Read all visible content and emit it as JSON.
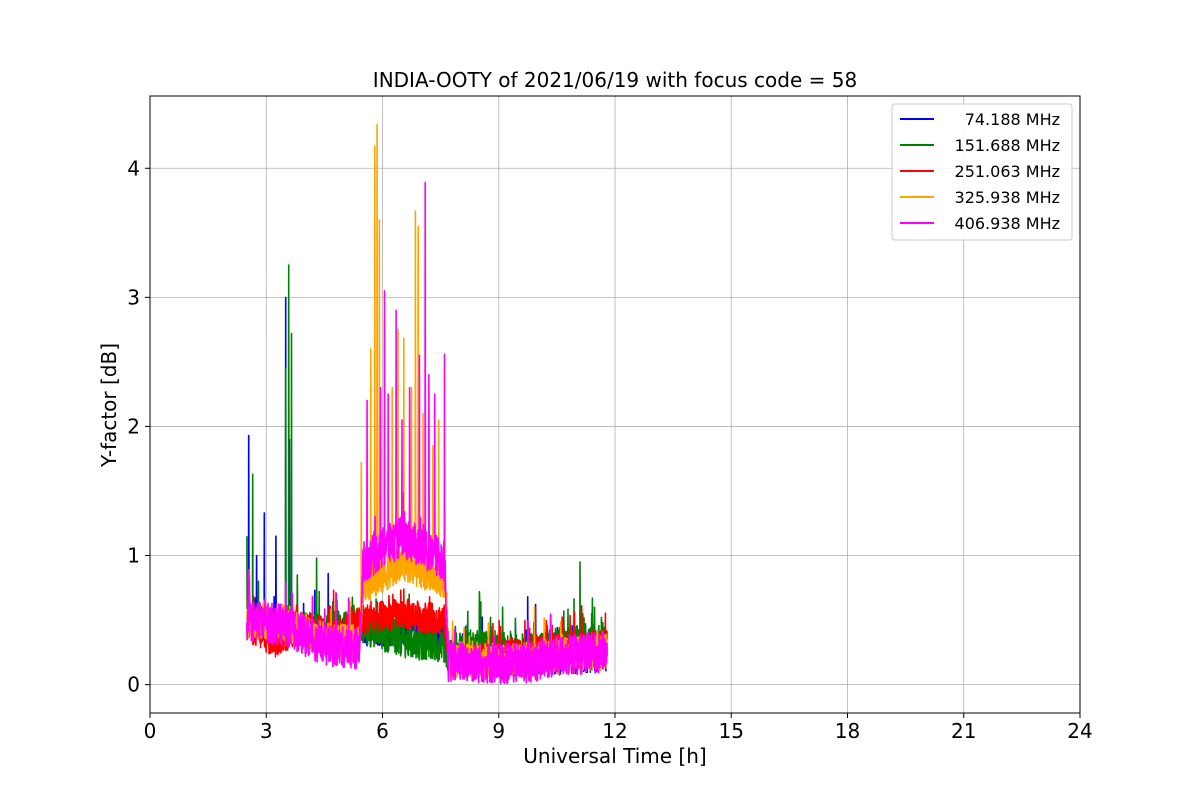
{
  "chart_data": {
    "type": "line",
    "title": "INDIA-OOTY of 2021/06/19 with focus code = 58",
    "xlabel": "Universal Time [h]",
    "ylabel": "Y-factor [dB]",
    "xlim": [
      0,
      24
    ],
    "ylim": [
      -0.22,
      4.56
    ],
    "xticks": [
      0,
      3,
      6,
      9,
      12,
      15,
      18,
      21,
      24
    ],
    "yticks": [
      0,
      1,
      2,
      3,
      4
    ],
    "grid": true,
    "legend_position": "top-right",
    "series": [
      {
        "name": "74.188 MHz",
        "color": "#0000ff",
        "baseline": [
          [
            2.5,
            0.5
          ],
          [
            3.5,
            0.45
          ],
          [
            4.5,
            0.38
          ],
          [
            5.5,
            0.42
          ],
          [
            6.5,
            0.42
          ],
          [
            7.6,
            0.4
          ],
          [
            7.7,
            0.2
          ],
          [
            8.5,
            0.22
          ],
          [
            9.5,
            0.18
          ],
          [
            10.5,
            0.2
          ],
          [
            11.8,
            0.22
          ]
        ],
        "noise": 0.12,
        "spikes": [
          [
            2.55,
            1.93
          ],
          [
            2.75,
            1.0
          ],
          [
            2.95,
            1.33
          ],
          [
            3.25,
            1.15
          ],
          [
            3.5,
            3.0
          ],
          [
            3.6,
            1.9
          ],
          [
            4.6,
            0.86
          ],
          [
            8.8,
            0.45
          ],
          [
            9.75,
            0.68
          ],
          [
            9.95,
            0.62
          ]
        ]
      },
      {
        "name": "151.688 MHz",
        "color": "#008000",
        "baseline": [
          [
            2.5,
            0.5
          ],
          [
            3.5,
            0.45
          ],
          [
            4.5,
            0.42
          ],
          [
            5.5,
            0.45
          ],
          [
            6.5,
            0.35
          ],
          [
            7.6,
            0.3
          ],
          [
            7.7,
            0.25
          ],
          [
            8.5,
            0.3
          ],
          [
            9.5,
            0.25
          ],
          [
            10.5,
            0.3
          ],
          [
            11.8,
            0.35
          ]
        ],
        "noise": 0.14,
        "spikes": [
          [
            2.5,
            1.15
          ],
          [
            2.65,
            1.63
          ],
          [
            2.8,
            0.8
          ],
          [
            3.5,
            2.45
          ],
          [
            3.58,
            3.25
          ],
          [
            3.65,
            2.72
          ],
          [
            3.8,
            0.85
          ],
          [
            4.3,
            0.98
          ],
          [
            5.5,
            0.7
          ],
          [
            8.5,
            0.72
          ],
          [
            9.1,
            0.6
          ],
          [
            11.1,
            0.95
          ],
          [
            11.4,
            0.55
          ]
        ]
      },
      {
        "name": "251.063 MHz",
        "color": "#ff0000",
        "baseline": [
          [
            2.5,
            0.45
          ],
          [
            3.2,
            0.33
          ],
          [
            4.0,
            0.45
          ],
          [
            4.8,
            0.38
          ],
          [
            5.4,
            0.5
          ],
          [
            6.5,
            0.55
          ],
          [
            7.6,
            0.5
          ],
          [
            7.7,
            0.18
          ],
          [
            8.5,
            0.2
          ],
          [
            9.5,
            0.25
          ],
          [
            10.5,
            0.28
          ],
          [
            11.8,
            0.3
          ]
        ],
        "noise": 0.12,
        "spikes": [
          [
            5.2,
            0.6
          ],
          [
            6.0,
            0.55
          ]
        ]
      },
      {
        "name": "325.938 MHz",
        "color": "#ffa500",
        "baseline": [
          [
            2.5,
            0.5
          ],
          [
            3.5,
            0.48
          ],
          [
            4.5,
            0.35
          ],
          [
            5.4,
            0.32
          ],
          [
            5.5,
            0.75
          ],
          [
            6.5,
            0.95
          ],
          [
            7.65,
            0.8
          ],
          [
            7.7,
            0.2
          ],
          [
            8.5,
            0.18
          ],
          [
            9.5,
            0.18
          ],
          [
            10.5,
            0.22
          ],
          [
            11.8,
            0.25
          ]
        ],
        "noise": 0.14,
        "spikes": [
          [
            5.45,
            1.72
          ],
          [
            5.7,
            2.6
          ],
          [
            5.8,
            4.17
          ],
          [
            5.86,
            4.34
          ],
          [
            5.92,
            3.6
          ],
          [
            6.05,
            2.8
          ],
          [
            6.25,
            2.3
          ],
          [
            6.4,
            2.75
          ],
          [
            6.55,
            2.68
          ],
          [
            6.75,
            2.3
          ],
          [
            6.85,
            3.67
          ],
          [
            6.92,
            3.55
          ],
          [
            7.05,
            2.1
          ],
          [
            7.3,
            1.85
          ],
          [
            7.45,
            2.05
          ]
        ]
      },
      {
        "name": "406.938 MHz",
        "color": "#ff00ff",
        "baseline": [
          [
            2.5,
            0.5
          ],
          [
            3.5,
            0.46
          ],
          [
            4.5,
            0.3
          ],
          [
            5.4,
            0.28
          ],
          [
            5.5,
            0.95
          ],
          [
            6.5,
            1.15
          ],
          [
            7.6,
            0.95
          ],
          [
            7.7,
            0.18
          ],
          [
            8.5,
            0.17
          ],
          [
            9.5,
            0.16
          ],
          [
            10.5,
            0.22
          ],
          [
            11.8,
            0.26
          ]
        ],
        "noise": 0.16,
        "spikes": [
          [
            5.6,
            2.2
          ],
          [
            5.95,
            2.3
          ],
          [
            6.05,
            3.05
          ],
          [
            6.15,
            2.25
          ],
          [
            6.35,
            2.9
          ],
          [
            6.5,
            2.05
          ],
          [
            6.7,
            2.3
          ],
          [
            6.95,
            2.55
          ],
          [
            7.1,
            3.89
          ],
          [
            7.2,
            2.4
          ],
          [
            7.35,
            2.25
          ],
          [
            7.6,
            2.56
          ]
        ]
      }
    ]
  }
}
